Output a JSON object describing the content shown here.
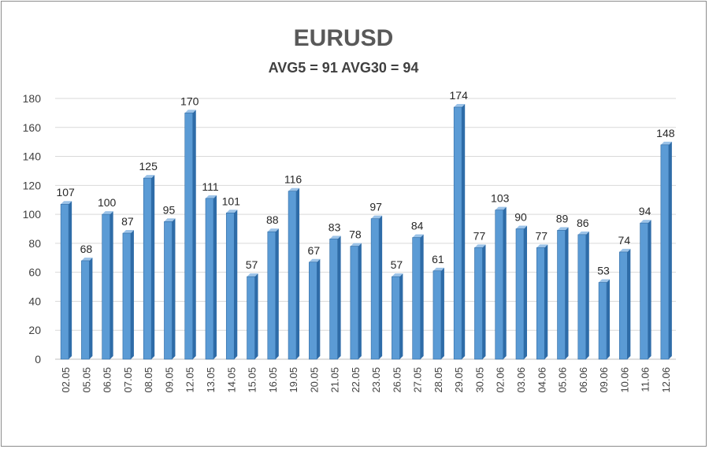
{
  "chart_data": {
    "type": "bar",
    "title": "EURUSD",
    "subtitle": "AVG5 = 91 AVG30 = 94",
    "categories": [
      "02.05",
      "05.05",
      "06.05",
      "07.05",
      "08.05",
      "09.05",
      "12.05",
      "13.05",
      "14.05",
      "15.05",
      "16.05",
      "19.05",
      "20.05",
      "21.05",
      "22.05",
      "23.05",
      "26.05",
      "27.05",
      "28.05",
      "29.05",
      "30.05",
      "02.06",
      "03.06",
      "04.06",
      "05.06",
      "06.06",
      "09.06",
      "10.06",
      "11.06",
      "12.06"
    ],
    "values": [
      107,
      68,
      100,
      87,
      125,
      95,
      170,
      111,
      101,
      57,
      88,
      116,
      67,
      83,
      78,
      97,
      57,
      84,
      61,
      174,
      77,
      103,
      90,
      77,
      89,
      86,
      53,
      74,
      94,
      148
    ],
    "ylim": [
      0,
      180
    ],
    "yticks": [
      0,
      20,
      40,
      60,
      80,
      100,
      120,
      140,
      160,
      180
    ],
    "xlabel": "",
    "ylabel": "",
    "grid": true,
    "colors": {
      "bar_front": "#5b9bd5",
      "bar_side": "#2e6ca8",
      "bar_top": "#9cc3e8",
      "bar_edge": "#2f6aa3"
    }
  }
}
